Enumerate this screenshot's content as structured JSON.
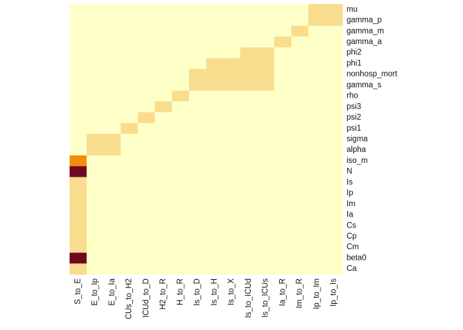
{
  "chart_data": {
    "type": "heatmap",
    "title": "",
    "xlabel": "",
    "ylabel": "",
    "x": [
      "S_to_E",
      "E_to_Ip",
      "E_to_Ia",
      "CUs_to_H2",
      "ICUd_to_D",
      "H2_to_R",
      "H_to_R",
      "Is_to_D",
      "Is_to_H",
      "Is_to_X",
      "Is_to_ICUd",
      "Is_to_ICUs",
      "Ia_to_R",
      "Im_to_R",
      "Ip_to_Im",
      "Ip_to_Is"
    ],
    "y": [
      "mu",
      "gamma_p",
      "gamma_m",
      "gamma_a",
      "phi2",
      "phi1",
      "nonhosp_mort",
      "gamma_s",
      "rho",
      "psi3",
      "psi2",
      "psi1",
      "sigma",
      "alpha",
      "iso_m",
      "N",
      "Is",
      "Ip",
      "Im",
      "Ia",
      "Cs",
      "Cp",
      "Cm",
      "beta0",
      "Ca"
    ],
    "value_scale": "0 = none, 1 = low, 2 = medium, 3 = high",
    "colors": [
      "#ffffc8",
      "#f9dd8f",
      "#f08e0c",
      "#6d0a1e"
    ],
    "values": [
      [
        0,
        0,
        0,
        0,
        0,
        0,
        0,
        0,
        0,
        0,
        0,
        0,
        0,
        0,
        1,
        1
      ],
      [
        0,
        0,
        0,
        0,
        0,
        0,
        0,
        0,
        0,
        0,
        0,
        0,
        0,
        0,
        1,
        1
      ],
      [
        0,
        0,
        0,
        0,
        0,
        0,
        0,
        0,
        0,
        0,
        0,
        0,
        0,
        1,
        0,
        0
      ],
      [
        0,
        0,
        0,
        0,
        0,
        0,
        0,
        0,
        0,
        0,
        0,
        0,
        1,
        0,
        0,
        0
      ],
      [
        0,
        0,
        0,
        0,
        0,
        0,
        0,
        0,
        0,
        0,
        1,
        1,
        0,
        0,
        0,
        0
      ],
      [
        0,
        0,
        0,
        0,
        0,
        0,
        0,
        0,
        1,
        1,
        1,
        1,
        0,
        0,
        0,
        0
      ],
      [
        0,
        0,
        0,
        0,
        0,
        0,
        0,
        1,
        1,
        1,
        1,
        1,
        0,
        0,
        0,
        0
      ],
      [
        0,
        0,
        0,
        0,
        0,
        0,
        0,
        1,
        1,
        1,
        1,
        1,
        0,
        0,
        0,
        0
      ],
      [
        0,
        0,
        0,
        0,
        0,
        0,
        1,
        0,
        0,
        0,
        0,
        0,
        0,
        0,
        0,
        0
      ],
      [
        0,
        0,
        0,
        0,
        0,
        1,
        0,
        0,
        0,
        0,
        0,
        0,
        0,
        0,
        0,
        0
      ],
      [
        0,
        0,
        0,
        0,
        1,
        0,
        0,
        0,
        0,
        0,
        0,
        0,
        0,
        0,
        0,
        0
      ],
      [
        0,
        0,
        0,
        1,
        0,
        0,
        0,
        0,
        0,
        0,
        0,
        0,
        0,
        0,
        0,
        0
      ],
      [
        0,
        1,
        1,
        0,
        0,
        0,
        0,
        0,
        0,
        0,
        0,
        0,
        0,
        0,
        0,
        0
      ],
      [
        0,
        1,
        1,
        0,
        0,
        0,
        0,
        0,
        0,
        0,
        0,
        0,
        0,
        0,
        0,
        0
      ],
      [
        2,
        0,
        0,
        0,
        0,
        0,
        0,
        0,
        0,
        0,
        0,
        0,
        0,
        0,
        0,
        0
      ],
      [
        3,
        0,
        0,
        0,
        0,
        0,
        0,
        0,
        0,
        0,
        0,
        0,
        0,
        0,
        0,
        0
      ],
      [
        1,
        0,
        0,
        0,
        0,
        0,
        0,
        0,
        0,
        0,
        0,
        0,
        0,
        0,
        0,
        0
      ],
      [
        1,
        0,
        0,
        0,
        0,
        0,
        0,
        0,
        0,
        0,
        0,
        0,
        0,
        0,
        0,
        0
      ],
      [
        1,
        0,
        0,
        0,
        0,
        0,
        0,
        0,
        0,
        0,
        0,
        0,
        0,
        0,
        0,
        0
      ],
      [
        1,
        0,
        0,
        0,
        0,
        0,
        0,
        0,
        0,
        0,
        0,
        0,
        0,
        0,
        0,
        0
      ],
      [
        1,
        0,
        0,
        0,
        0,
        0,
        0,
        0,
        0,
        0,
        0,
        0,
        0,
        0,
        0,
        0
      ],
      [
        1,
        0,
        0,
        0,
        0,
        0,
        0,
        0,
        0,
        0,
        0,
        0,
        0,
        0,
        0,
        0
      ],
      [
        1,
        0,
        0,
        0,
        0,
        0,
        0,
        0,
        0,
        0,
        0,
        0,
        0,
        0,
        0,
        0
      ],
      [
        3,
        0,
        0,
        0,
        0,
        0,
        0,
        0,
        0,
        0,
        0,
        0,
        0,
        0,
        0,
        0
      ],
      [
        1,
        0,
        0,
        0,
        0,
        0,
        0,
        0,
        0,
        0,
        0,
        0,
        0,
        0,
        0,
        0
      ]
    ],
    "grid": false,
    "legend": "none"
  }
}
